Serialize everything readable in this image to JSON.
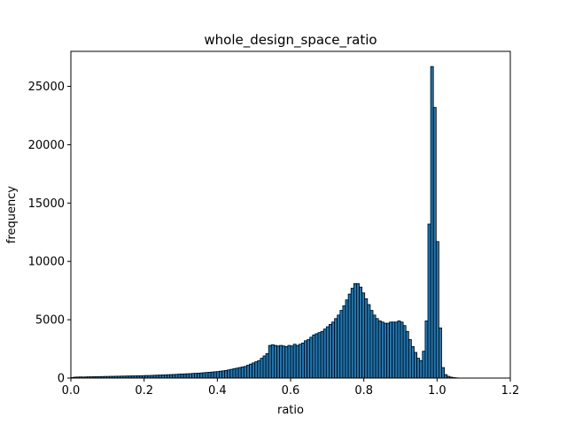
{
  "chart_data": {
    "type": "bar",
    "title": "whole_design_space_ratio",
    "xlabel": "ratio",
    "ylabel": "frequency",
    "xlim": [
      0.0,
      1.2
    ],
    "ylim": [
      0,
      28000
    ],
    "xticks": [
      0.0,
      0.2,
      0.4,
      0.6,
      0.8,
      1.0,
      1.2
    ],
    "xtick_labels": [
      "0.0",
      "0.2",
      "0.4",
      "0.6",
      "0.8",
      "1.0",
      "1.2"
    ],
    "yticks": [
      0,
      5000,
      10000,
      15000,
      20000,
      25000
    ],
    "ytick_labels": [
      "0",
      "5000",
      "10000",
      "15000",
      "20000",
      "25000"
    ],
    "grid": false,
    "bar_color": "#1f77b4",
    "edge_color": "#000000",
    "bin_width": 0.0075,
    "bins": [
      {
        "x": 0.0,
        "y": 50
      },
      {
        "x": 0.0075,
        "y": 80
      },
      {
        "x": 0.015,
        "y": 90
      },
      {
        "x": 0.0225,
        "y": 100
      },
      {
        "x": 0.03,
        "y": 90
      },
      {
        "x": 0.0375,
        "y": 100
      },
      {
        "x": 0.045,
        "y": 110
      },
      {
        "x": 0.0525,
        "y": 110
      },
      {
        "x": 0.06,
        "y": 120
      },
      {
        "x": 0.0675,
        "y": 120
      },
      {
        "x": 0.075,
        "y": 130
      },
      {
        "x": 0.0825,
        "y": 130
      },
      {
        "x": 0.09,
        "y": 140
      },
      {
        "x": 0.0975,
        "y": 140
      },
      {
        "x": 0.105,
        "y": 150
      },
      {
        "x": 0.1125,
        "y": 150
      },
      {
        "x": 0.12,
        "y": 160
      },
      {
        "x": 0.1275,
        "y": 160
      },
      {
        "x": 0.135,
        "y": 170
      },
      {
        "x": 0.1425,
        "y": 170
      },
      {
        "x": 0.15,
        "y": 180
      },
      {
        "x": 0.1575,
        "y": 180
      },
      {
        "x": 0.165,
        "y": 190
      },
      {
        "x": 0.1725,
        "y": 190
      },
      {
        "x": 0.18,
        "y": 200
      },
      {
        "x": 0.1875,
        "y": 200
      },
      {
        "x": 0.195,
        "y": 210
      },
      {
        "x": 0.2025,
        "y": 220
      },
      {
        "x": 0.21,
        "y": 220
      },
      {
        "x": 0.2175,
        "y": 230
      },
      {
        "x": 0.225,
        "y": 240
      },
      {
        "x": 0.2325,
        "y": 250
      },
      {
        "x": 0.24,
        "y": 260
      },
      {
        "x": 0.2475,
        "y": 270
      },
      {
        "x": 0.255,
        "y": 280
      },
      {
        "x": 0.2625,
        "y": 290
      },
      {
        "x": 0.27,
        "y": 300
      },
      {
        "x": 0.2775,
        "y": 310
      },
      {
        "x": 0.285,
        "y": 320
      },
      {
        "x": 0.2925,
        "y": 340
      },
      {
        "x": 0.3,
        "y": 350
      },
      {
        "x": 0.3075,
        "y": 360
      },
      {
        "x": 0.315,
        "y": 370
      },
      {
        "x": 0.3225,
        "y": 380
      },
      {
        "x": 0.33,
        "y": 400
      },
      {
        "x": 0.3375,
        "y": 410
      },
      {
        "x": 0.345,
        "y": 420
      },
      {
        "x": 0.3525,
        "y": 440
      },
      {
        "x": 0.36,
        "y": 460
      },
      {
        "x": 0.3675,
        "y": 480
      },
      {
        "x": 0.375,
        "y": 500
      },
      {
        "x": 0.3825,
        "y": 520
      },
      {
        "x": 0.39,
        "y": 540
      },
      {
        "x": 0.3975,
        "y": 560
      },
      {
        "x": 0.405,
        "y": 590
      },
      {
        "x": 0.4125,
        "y": 620
      },
      {
        "x": 0.42,
        "y": 650
      },
      {
        "x": 0.4275,
        "y": 700
      },
      {
        "x": 0.435,
        "y": 750
      },
      {
        "x": 0.4425,
        "y": 800
      },
      {
        "x": 0.45,
        "y": 850
      },
      {
        "x": 0.4575,
        "y": 900
      },
      {
        "x": 0.465,
        "y": 950
      },
      {
        "x": 0.4725,
        "y": 1000
      },
      {
        "x": 0.48,
        "y": 1100
      },
      {
        "x": 0.4875,
        "y": 1200
      },
      {
        "x": 0.495,
        "y": 1300
      },
      {
        "x": 0.5025,
        "y": 1400
      },
      {
        "x": 0.51,
        "y": 1500
      },
      {
        "x": 0.5175,
        "y": 1700
      },
      {
        "x": 0.525,
        "y": 1900
      },
      {
        "x": 0.5325,
        "y": 2100
      },
      {
        "x": 0.54,
        "y": 2800
      },
      {
        "x": 0.5475,
        "y": 2850
      },
      {
        "x": 0.555,
        "y": 2800
      },
      {
        "x": 0.5625,
        "y": 2750
      },
      {
        "x": 0.57,
        "y": 2800
      },
      {
        "x": 0.5775,
        "y": 2750
      },
      {
        "x": 0.585,
        "y": 2700
      },
      {
        "x": 0.5925,
        "y": 2800
      },
      {
        "x": 0.6,
        "y": 2750
      },
      {
        "x": 0.6075,
        "y": 2900
      },
      {
        "x": 0.615,
        "y": 2800
      },
      {
        "x": 0.6225,
        "y": 2900
      },
      {
        "x": 0.63,
        "y": 3000
      },
      {
        "x": 0.6375,
        "y": 3200
      },
      {
        "x": 0.645,
        "y": 3300
      },
      {
        "x": 0.6525,
        "y": 3500
      },
      {
        "x": 0.66,
        "y": 3700
      },
      {
        "x": 0.6675,
        "y": 3800
      },
      {
        "x": 0.675,
        "y": 3900
      },
      {
        "x": 0.6825,
        "y": 4000
      },
      {
        "x": 0.69,
        "y": 4200
      },
      {
        "x": 0.6975,
        "y": 4400
      },
      {
        "x": 0.705,
        "y": 4600
      },
      {
        "x": 0.7125,
        "y": 4800
      },
      {
        "x": 0.72,
        "y": 5100
      },
      {
        "x": 0.7275,
        "y": 5400
      },
      {
        "x": 0.735,
        "y": 5800
      },
      {
        "x": 0.7425,
        "y": 6200
      },
      {
        "x": 0.75,
        "y": 6700
      },
      {
        "x": 0.7575,
        "y": 7200
      },
      {
        "x": 0.765,
        "y": 7700
      },
      {
        "x": 0.7725,
        "y": 8100
      },
      {
        "x": 0.78,
        "y": 8100
      },
      {
        "x": 0.7875,
        "y": 7800
      },
      {
        "x": 0.795,
        "y": 7300
      },
      {
        "x": 0.8025,
        "y": 6800
      },
      {
        "x": 0.81,
        "y": 6300
      },
      {
        "x": 0.8175,
        "y": 5800
      },
      {
        "x": 0.825,
        "y": 5400
      },
      {
        "x": 0.8325,
        "y": 5100
      },
      {
        "x": 0.84,
        "y": 4900
      },
      {
        "x": 0.8475,
        "y": 4800
      },
      {
        "x": 0.855,
        "y": 4700
      },
      {
        "x": 0.8625,
        "y": 4700
      },
      {
        "x": 0.87,
        "y": 4800
      },
      {
        "x": 0.8775,
        "y": 4800
      },
      {
        "x": 0.885,
        "y": 4800
      },
      {
        "x": 0.8925,
        "y": 4900
      },
      {
        "x": 0.9,
        "y": 4800
      },
      {
        "x": 0.9075,
        "y": 4500
      },
      {
        "x": 0.915,
        "y": 4000
      },
      {
        "x": 0.9225,
        "y": 3300
      },
      {
        "x": 0.93,
        "y": 2700
      },
      {
        "x": 0.9375,
        "y": 2200
      },
      {
        "x": 0.945,
        "y": 1700
      },
      {
        "x": 0.9525,
        "y": 1500
      },
      {
        "x": 0.96,
        "y": 2300
      },
      {
        "x": 0.9675,
        "y": 4900
      },
      {
        "x": 0.975,
        "y": 13200
      },
      {
        "x": 0.9825,
        "y": 26700
      },
      {
        "x": 0.99,
        "y": 23200
      },
      {
        "x": 0.9975,
        "y": 11700
      },
      {
        "x": 1.005,
        "y": 4300
      },
      {
        "x": 1.0125,
        "y": 900
      },
      {
        "x": 1.02,
        "y": 300
      },
      {
        "x": 1.0275,
        "y": 150
      },
      {
        "x": 1.035,
        "y": 80
      },
      {
        "x": 1.0425,
        "y": 40
      },
      {
        "x": 1.05,
        "y": 20
      }
    ]
  }
}
